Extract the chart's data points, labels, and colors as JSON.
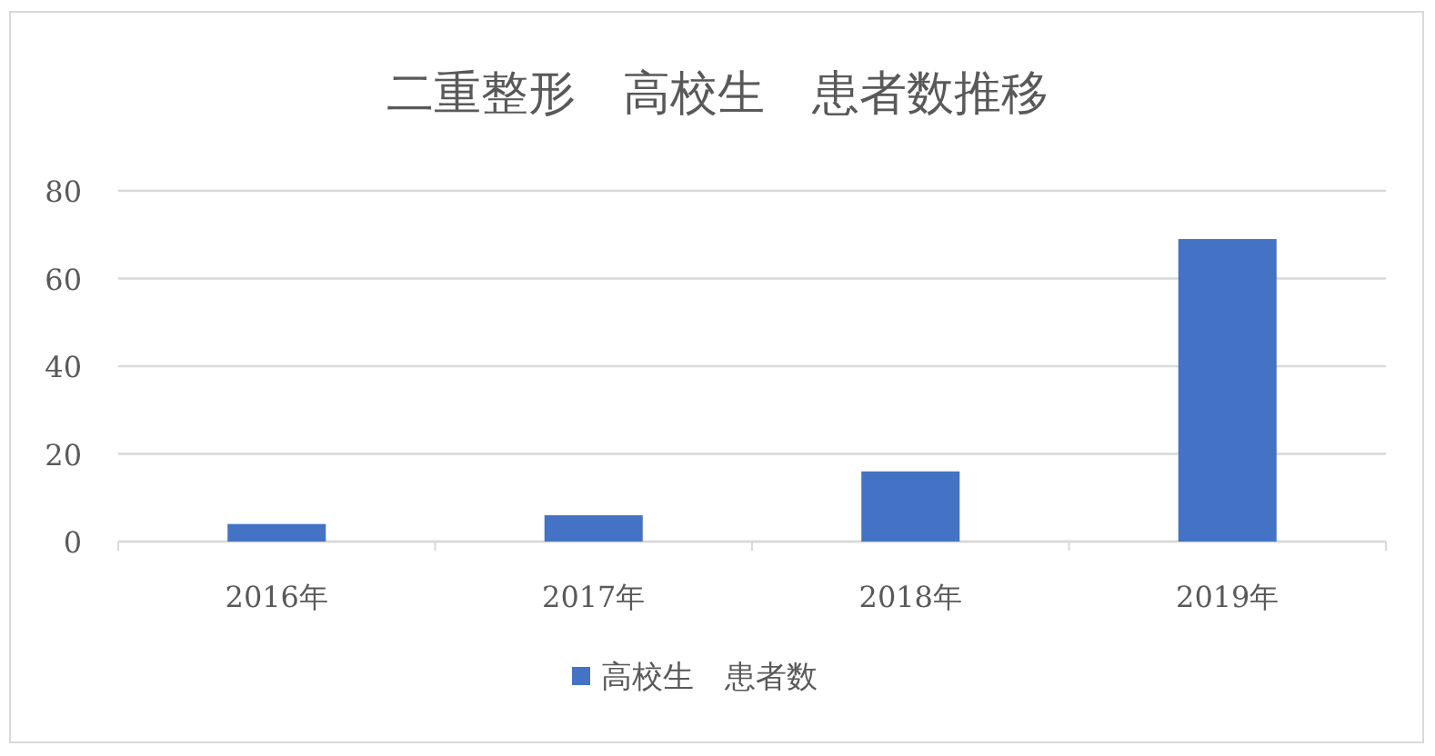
{
  "chart_data": {
    "type": "bar",
    "title": "二重整形　高校生　患者数推移",
    "categories": [
      "2016年",
      "2017年",
      "2018年",
      "2019年"
    ],
    "series": [
      {
        "name": "高校生　患者数",
        "color": "#4472c4",
        "values": [
          4,
          6,
          16,
          69
        ]
      }
    ],
    "ylim": [
      0,
      80
    ],
    "yticks": [
      0,
      20,
      40,
      60,
      80
    ],
    "grid": "y",
    "legend": "bottom"
  }
}
